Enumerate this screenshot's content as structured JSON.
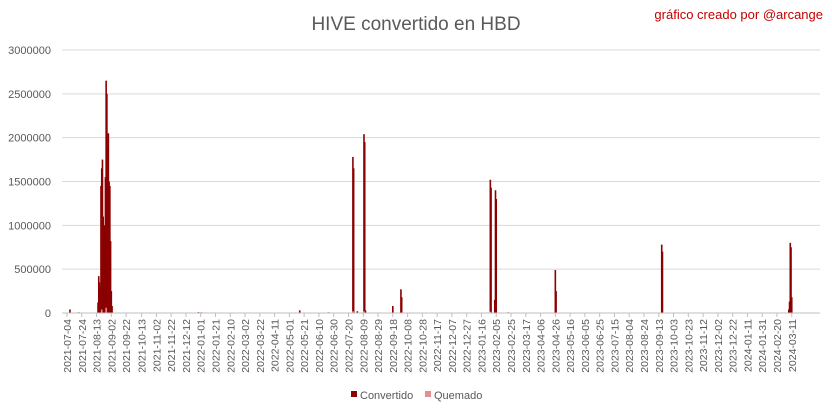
{
  "chart_data": {
    "type": "bar",
    "title": "HIVE convertido en HBD",
    "credit": "gráfico creado por @arcange",
    "xlabel": "",
    "ylabel": "",
    "ylim": [
      0,
      3000000
    ],
    "yticks": [
      "0",
      "500000",
      "1000000",
      "1500000",
      "2000000",
      "2500000",
      "3000000"
    ],
    "categories": [
      "2021-07-04",
      "2021-07-24",
      "2021-08-13",
      "2021-09-02",
      "2021-09-22",
      "2021-10-13",
      "2021-11-02",
      "2021-11-22",
      "2021-12-12",
      "2022-01-01",
      "2022-01-21",
      "2022-02-10",
      "2022-03-02",
      "2022-03-22",
      "2022-04-11",
      "2022-05-01",
      "2022-05-21",
      "2022-06-10",
      "2022-06-30",
      "2022-07-20",
      "2022-08-09",
      "2022-08-29",
      "2022-09-18",
      "2022-10-08",
      "2022-10-28",
      "2022-11-17",
      "2022-12-07",
      "2022-12-27",
      "2023-01-16",
      "2023-02-05",
      "2023-02-25",
      "2023-03-17",
      "2023-04-06",
      "2023-04-26",
      "2023-05-16",
      "2023-06-05",
      "2023-06-25",
      "2023-07-15",
      "2023-08-04",
      "2023-08-24",
      "2023-09-13",
      "2023-10-03",
      "2023-10-23",
      "2023-11-12",
      "2023-12-02",
      "2023-12-22",
      "2024-01-11",
      "2024-01-31",
      "2024-02-20",
      "2024-03-11"
    ],
    "legend_position": "bottom",
    "series": [
      {
        "name": "Convertido",
        "color": "#8b0000",
        "points": [
          [
            "2021-07-08",
            40000
          ],
          [
            "2021-07-20",
            8000
          ],
          [
            "2021-08-15",
            120000
          ],
          [
            "2021-08-16",
            420000
          ],
          [
            "2021-08-17",
            350000
          ],
          [
            "2021-08-18",
            300000
          ],
          [
            "2021-08-19",
            1450000
          ],
          [
            "2021-08-20",
            1650000
          ],
          [
            "2021-08-21",
            1750000
          ],
          [
            "2021-08-22",
            1100000
          ],
          [
            "2021-08-23",
            900000
          ],
          [
            "2021-08-24",
            1000000
          ],
          [
            "2021-08-25",
            1550000
          ],
          [
            "2021-08-26",
            2650000
          ],
          [
            "2021-08-27",
            2500000
          ],
          [
            "2021-08-28",
            1900000
          ],
          [
            "2021-08-29",
            2050000
          ],
          [
            "2021-08-30",
            1500000
          ],
          [
            "2021-08-31",
            1450000
          ],
          [
            "2021-09-01",
            820000
          ],
          [
            "2021-09-02",
            250000
          ],
          [
            "2021-09-03",
            80000
          ],
          [
            "2021-12-29",
            10000
          ],
          [
            "2022-01-02",
            8000
          ],
          [
            "2022-05-15",
            30000
          ],
          [
            "2022-06-23",
            8000
          ],
          [
            "2022-07-26",
            1780000
          ],
          [
            "2022-07-27",
            1650000
          ],
          [
            "2022-08-01",
            20000
          ],
          [
            "2022-08-10",
            2040000
          ],
          [
            "2022-08-11",
            1950000
          ],
          [
            "2022-08-12",
            30000
          ],
          [
            "2022-09-18",
            80000
          ],
          [
            "2022-09-29",
            270000
          ],
          [
            "2022-09-30",
            180000
          ],
          [
            "2023-01-28",
            1520000
          ],
          [
            "2023-01-29",
            1430000
          ],
          [
            "2023-02-03",
            150000
          ],
          [
            "2023-02-04",
            1400000
          ],
          [
            "2023-02-05",
            1300000
          ],
          [
            "2023-02-21",
            8000
          ],
          [
            "2023-04-26",
            490000
          ],
          [
            "2023-04-27",
            250000
          ],
          [
            "2023-09-17",
            780000
          ],
          [
            "2023-09-18",
            700000
          ],
          [
            "2024-03-07",
            40000
          ],
          [
            "2024-03-08",
            130000
          ],
          [
            "2024-03-09",
            800000
          ],
          [
            "2024-03-10",
            750000
          ],
          [
            "2024-03-11",
            180000
          ]
        ]
      },
      {
        "name": "Quemado",
        "color": "#e38f8f",
        "points": [
          [
            "2021-08-20",
            40000
          ],
          [
            "2021-08-26",
            60000
          ],
          [
            "2022-07-26",
            20000
          ],
          [
            "2022-08-10",
            20000
          ],
          [
            "2023-01-28",
            15000
          ]
        ]
      }
    ]
  }
}
